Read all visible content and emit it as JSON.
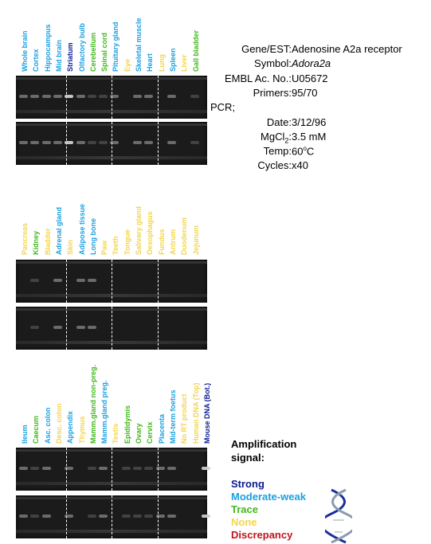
{
  "colors": {
    "strong": "#0a1a8f",
    "moderate": "#1aa1e0",
    "trace": "#41b81c",
    "none": "#f3d54a",
    "discrepancy": "#c0141a"
  },
  "panels": [
    {
      "lanes": [
        {
          "label": "Whole brain",
          "level": "moderate"
        },
        {
          "label": "Cortex",
          "level": "moderate"
        },
        {
          "label": "Hippocampus",
          "level": "moderate"
        },
        {
          "label": "Mid brain",
          "level": "moderate"
        },
        {
          "label": "Striatum",
          "level": "strong"
        },
        {
          "label": "Olfactory bulb",
          "level": "moderate"
        },
        {
          "label": "Cerebellum",
          "level": "trace"
        },
        {
          "label": "Spinal cord",
          "level": "trace"
        },
        {
          "label": "Pituitary gland",
          "level": "moderate"
        },
        {
          "label": "Eye",
          "level": "none"
        },
        {
          "label": "Skeletal muscle",
          "level": "moderate"
        },
        {
          "label": "Heart",
          "level": "moderate"
        },
        {
          "label": "Lung",
          "level": "none"
        },
        {
          "label": "Spleen",
          "level": "moderate"
        },
        {
          "label": "Liver",
          "level": "none"
        },
        {
          "label": "Gall bladder",
          "level": "trace"
        }
      ]
    },
    {
      "lanes": [
        {
          "label": "Pancreas",
          "level": "none"
        },
        {
          "label": "Kidney",
          "level": "trace"
        },
        {
          "label": "Bladder",
          "level": "none"
        },
        {
          "label": "Adrenal gland",
          "level": "moderate"
        },
        {
          "label": "Skin",
          "level": "none"
        },
        {
          "label": "Adipose tissue",
          "level": "moderate"
        },
        {
          "label": "Long bone",
          "level": "moderate"
        },
        {
          "label": "Paw",
          "level": "none"
        },
        {
          "label": "Teeth",
          "level": "none"
        },
        {
          "label": "Tongue",
          "level": "none"
        },
        {
          "label": "Salivary gland",
          "level": "none"
        },
        {
          "label": "Oesophagus",
          "level": "none"
        },
        {
          "label": "Fundus",
          "level": "none"
        },
        {
          "label": "Antrum",
          "level": "none"
        },
        {
          "label": "Duodenum",
          "level": "none"
        },
        {
          "label": "Jejunum",
          "level": "none"
        }
      ]
    },
    {
      "lanes": [
        {
          "label": "Ileum",
          "level": "moderate"
        },
        {
          "label": "Caecum",
          "level": "trace"
        },
        {
          "label": "Asc. colon",
          "level": "moderate"
        },
        {
          "label": "Desc. colon",
          "level": "none"
        },
        {
          "label": "Appendix",
          "level": "moderate"
        },
        {
          "label": "Thymus",
          "level": "none"
        },
        {
          "label": "Mamm.gland non-preg.",
          "level": "trace"
        },
        {
          "label": "Mamm.gland preg.",
          "level": "moderate"
        },
        {
          "label": "Testis",
          "level": "none"
        },
        {
          "label": "Epididymis",
          "level": "trace"
        },
        {
          "label": "Ovary",
          "level": "trace"
        },
        {
          "label": "Cervix",
          "level": "trace"
        },
        {
          "label": "Placenta",
          "level": "moderate"
        },
        {
          "label": "Mid-term foetus",
          "level": "moderate"
        },
        {
          "label": "No RT product",
          "level": "none"
        },
        {
          "label": "Human DNA (Top)",
          "level": "none"
        },
        {
          "label": "Mouse DNA (Bot.)",
          "level": "strong"
        }
      ]
    }
  ],
  "info": [
    {
      "key": "Gene/EST:",
      "value": "Adenosine A2a receptor"
    },
    {
      "key": "Symbol:",
      "value": "Adora2a",
      "italic": true
    },
    {
      "key": "EMBL Ac. No.:",
      "value": "U05672"
    },
    {
      "key": "Primers:",
      "value": "95/70"
    },
    {
      "key": "PCR;",
      "value": "",
      "left": true
    },
    {
      "key": "Date:",
      "value": "3/12/96"
    },
    {
      "key": "MgCl2:",
      "value": "3.5 mM"
    },
    {
      "key": "Temp:",
      "value": "60oC"
    },
    {
      "key": "Cycles:",
      "value": "x40"
    }
  ],
  "legend": {
    "title": "Amplification\nsignal:",
    "items": [
      {
        "label": "Strong",
        "level": "strong"
      },
      {
        "label": "Moderate-weak",
        "level": "moderate"
      },
      {
        "label": "Trace",
        "level": "trace"
      },
      {
        "label": "None",
        "level": "none"
      },
      {
        "label": "Discrepancy",
        "level": "discrepancy"
      }
    ]
  }
}
